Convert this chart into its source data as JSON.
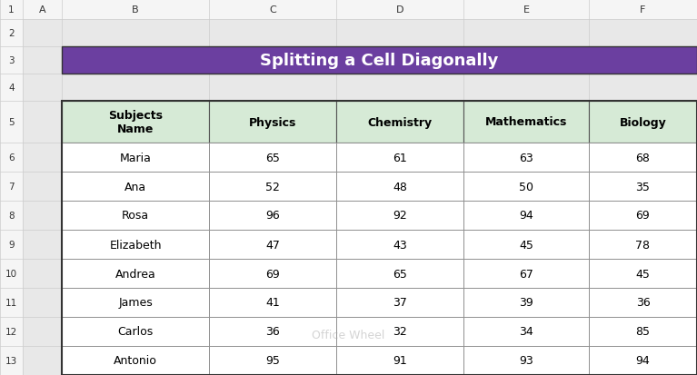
{
  "title": "Splitting a Cell Diagonally",
  "title_bg": "#6B3FA0",
  "title_color": "#FFFFFF",
  "header_bg": "#D6EAD6",
  "header_color": "#000000",
  "cell_bg": "#FFFFFF",
  "border_color": "#999999",
  "grid_bg": "#F0F0F0",
  "sheet_bg": "#FFFFFF",
  "col_header_bg": "#F5F5F5",
  "row_header_bg": "#F5F5F5",
  "col_labels": [
    "A",
    "B",
    "C",
    "D",
    "E",
    "F"
  ],
  "row_labels": [
    "1",
    "2",
    "3",
    "4",
    "5",
    "6",
    "7",
    "8",
    "9",
    "10",
    "11",
    "12",
    "13"
  ],
  "headers": [
    "Subjects\nName",
    "Physics",
    "Chemistry",
    "Mathematics",
    "Biology"
  ],
  "rows": [
    [
      "Maria",
      65,
      61,
      63,
      68
    ],
    [
      "Ana",
      52,
      48,
      50,
      35
    ],
    [
      "Rosa",
      96,
      92,
      94,
      69
    ],
    [
      "Elizabeth",
      47,
      43,
      45,
      78
    ],
    [
      "Andrea",
      69,
      65,
      67,
      45
    ],
    [
      "James",
      41,
      37,
      39,
      36
    ],
    [
      "Carlos",
      36,
      32,
      34,
      85
    ],
    [
      "Antonio",
      95,
      91,
      93,
      94
    ]
  ],
  "watermark": "Office Wheel"
}
